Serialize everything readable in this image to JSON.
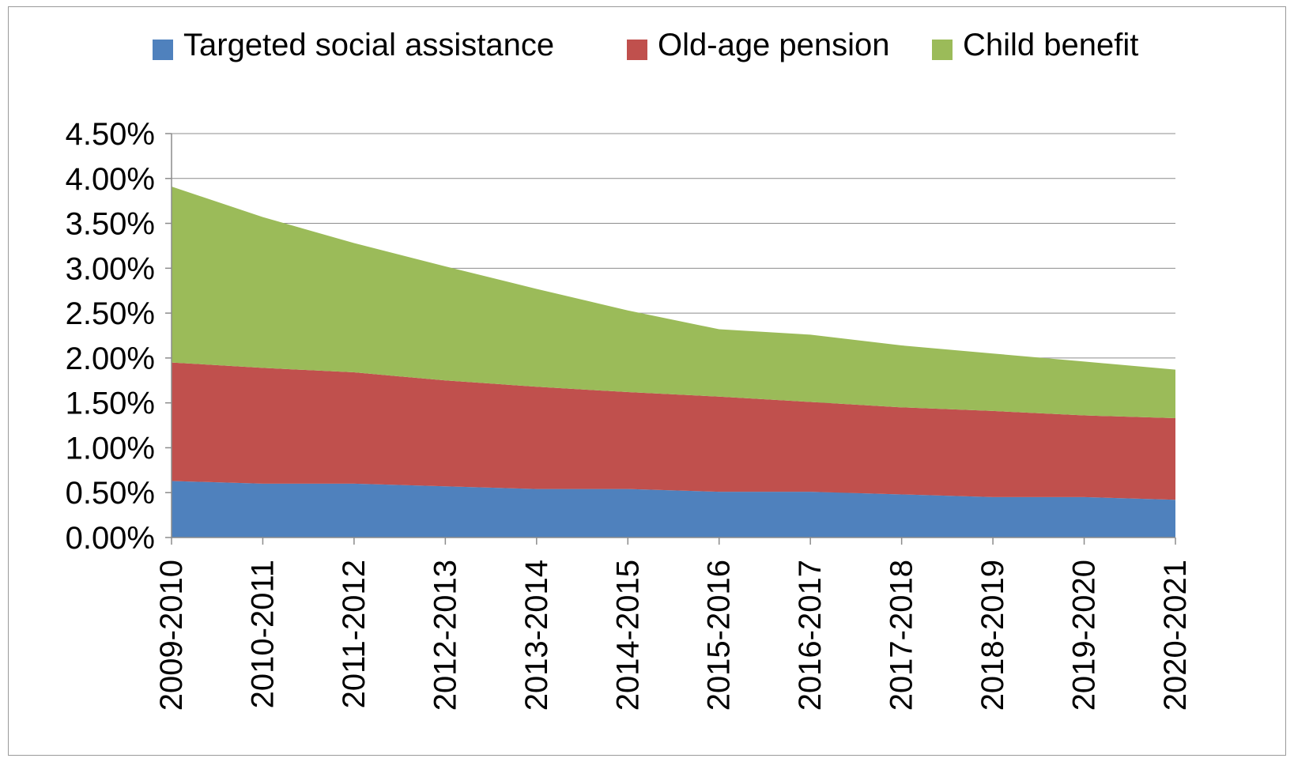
{
  "chart_data": {
    "type": "area",
    "stacked": true,
    "categories": [
      "2009-2010",
      "2010-2011",
      "2011-2012",
      "2012-2013",
      "2013-2014",
      "2014-2015",
      "2015-2016",
      "2016-2017",
      "2017-2018",
      "2018-2019",
      "2019-2020",
      "2020-2021"
    ],
    "series": [
      {
        "name": "Targeted social assistance",
        "color": "#4F81BD",
        "values": [
          0.63,
          0.6,
          0.6,
          0.57,
          0.54,
          0.54,
          0.51,
          0.51,
          0.48,
          0.45,
          0.45,
          0.42
        ]
      },
      {
        "name": "Old-age pension",
        "color": "#C0504D",
        "values": [
          1.32,
          1.29,
          1.24,
          1.18,
          1.14,
          1.08,
          1.06,
          1.0,
          0.97,
          0.96,
          0.91,
          0.91
        ]
      },
      {
        "name": "Child benefit",
        "color": "#9BBB59",
        "values": [
          1.96,
          1.68,
          1.44,
          1.27,
          1.09,
          0.91,
          0.75,
          0.75,
          0.69,
          0.64,
          0.6,
          0.54
        ]
      }
    ],
    "ylim": [
      0,
      4.5
    ],
    "yticks": [
      "0.00%",
      "0.50%",
      "1.00%",
      "1.50%",
      "2.00%",
      "2.50%",
      "3.00%",
      "3.50%",
      "4.00%",
      "4.50%"
    ],
    "ytick_values": [
      0,
      0.5,
      1,
      1.5,
      2,
      2.5,
      3,
      3.5,
      4,
      4.5
    ],
    "grid": true,
    "legend_position": "top-center"
  }
}
